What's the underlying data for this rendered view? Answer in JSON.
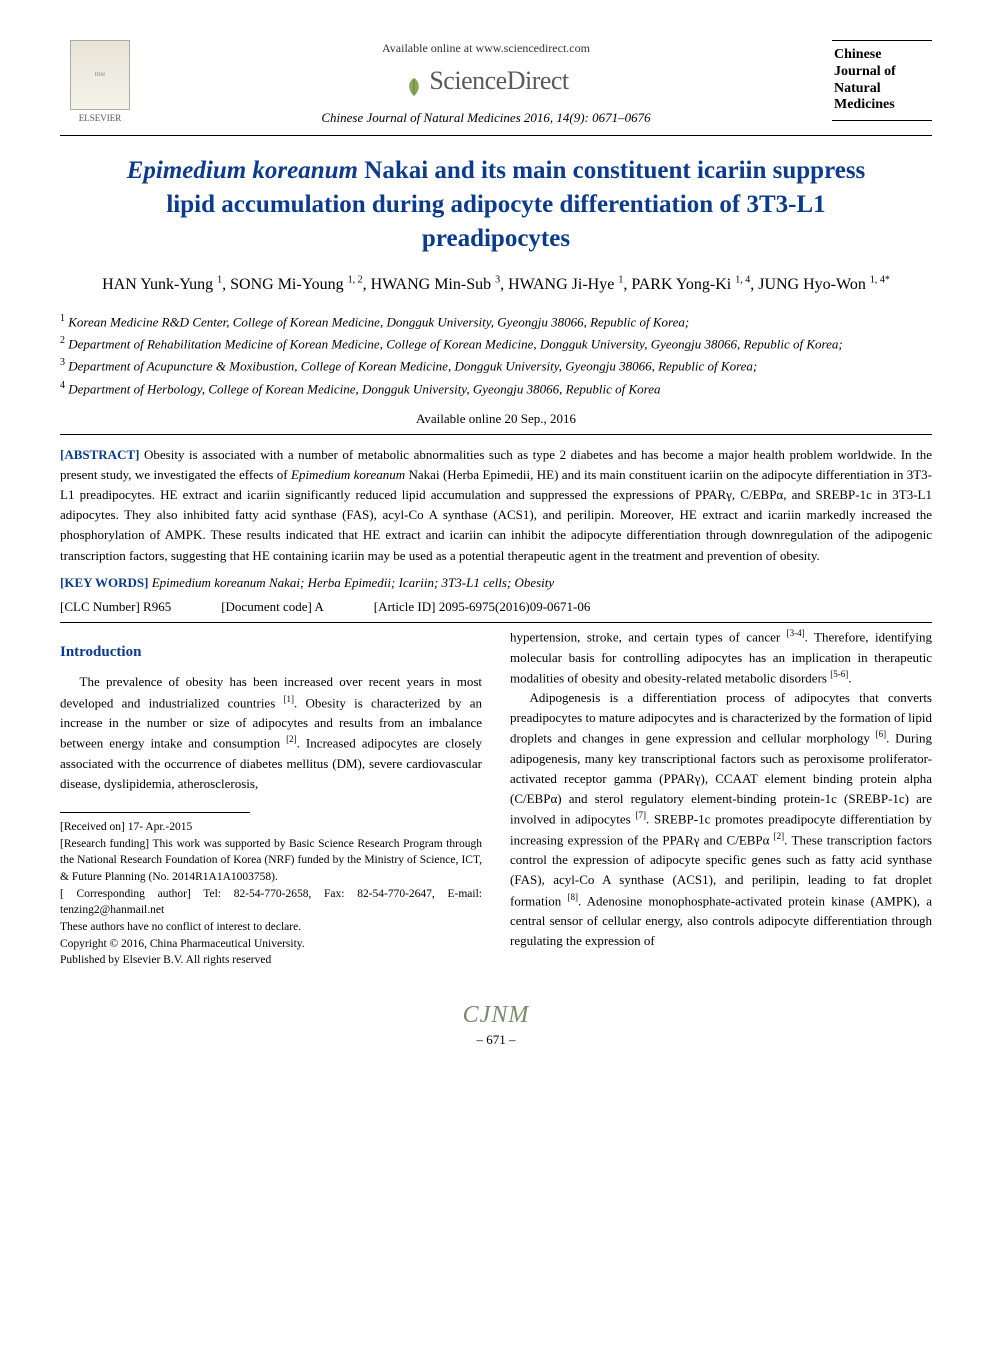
{
  "header": {
    "elsevier_label": "ELSEVIER",
    "available_text": "Available online at www.sciencedirect.com",
    "sd_brand": "ScienceDirect",
    "citation": "Chinese Journal of Natural Medicines 2016, 14(9): 0671–0676",
    "journal_cover_lines": [
      "Chinese",
      "Journal of",
      "Natural",
      "Medicines"
    ]
  },
  "title": {
    "species": "Epimedium koreanum",
    "rest": " Nakai and its main constituent icariin suppress lipid accumulation during adipocyte differentiation of 3T3-L1 preadipocytes",
    "color": "#0a3b8c",
    "fontsize": 25
  },
  "authors_html": "HAN Yunk-Yung <sup>1</sup>, SONG Mi-Young <sup>1, 2</sup>, HWANG Min-Sub <sup>3</sup>, HWANG Ji-Hye <sup>1</sup>, PARK Yong-Ki <sup>1, 4</sup>, JUNG Hyo-Won <sup>1, 4*</sup>",
  "affiliations": [
    "<sup>1</sup> Korean Medicine R&D Center, College of Korean Medicine, Dongguk University, Gyeongju 38066, Republic of Korea;",
    "<sup>2</sup> Department of Rehabilitation Medicine of Korean Medicine, College of Korean Medicine, Dongguk University, Gyeongju 38066, Republic of Korea;",
    "<sup>3</sup> Department of Acupuncture & Moxibustion, College of Korean Medicine, Dongguk University, Gyeongju 38066, Republic of Korea;",
    "<sup>4</sup> Department of Herbology, College of Korean Medicine, Dongguk University, Gyeongju 38066, Republic of Korea"
  ],
  "online_date": "Available online 20 Sep., 2016",
  "abstract": {
    "label": "[ABSTRACT]",
    "text": " Obesity is associated with a number of metabolic abnormalities such as type 2 diabetes and has become a major health problem worldwide. In the present study, we investigated the effects of <span class=\"ital\">Epimedium koreanum</span> Nakai (Herba Epimedii, HE) and its main constituent icariin on the adipocyte differentiation in 3T3-L1 preadipocytes. HE extract and icariin significantly reduced lipid accumulation and suppressed the expressions of PPARγ, C/EBPα, and SREBP-1c in 3T3-L1 adipocytes. They also inhibited fatty acid synthase (FAS), acyl-Co A synthase (ACS1), and perilipin. Moreover, HE extract and icariin markedly increased the phosphorylation of AMPK. These results indicated that HE extract and icariin can inhibit the adipocyte differentiation through downregulation of the adipogenic transcription factors, suggesting that HE containing icariin may be used as a potential therapeutic agent in the treatment and prevention of obesity."
  },
  "keywords": {
    "label": "[KEY WORDS]",
    "text": " Epimedium koreanum Nakai; Herba Epimedii; Icariin; 3T3-L1 cells; Obesity"
  },
  "clc": {
    "label": "[CLC Number]",
    "value": " R965",
    "doc_label": "[Document code]",
    "doc_value": " A",
    "article_label": "[Article ID]",
    "article_value": " 2095-6975(2016)09-0671-06"
  },
  "intro_heading": "Introduction",
  "col_left_paras": [
    "The prevalence of obesity has been increased over recent years in most developed and industrialized countries <sup>[1]</sup>. Obesity is characterized by an increase in the number or size of adipocytes and results from an imbalance between energy intake and consumption <sup>[2]</sup>. Increased adipocytes are closely associated with the occurrence of diabetes mellitus (DM), severe cardiovascular disease, dyslipidemia, atherosclerosis,"
  ],
  "col_right_paras": [
    "hypertension, stroke, and certain types of cancer <sup>[3-4]</sup>. Therefore, identifying molecular basis for controlling adipocytes has an implication in therapeutic modalities of obesity and obesity-related metabolic disorders <sup>[5-6]</sup>.",
    "Adipogenesis is a differentiation process of adipocytes that converts preadipocytes to mature adipocytes and is characterized by the formation of lipid droplets and changes in gene expression and cellular morphology <sup>[6]</sup>. During adipogenesis, many key transcriptional factors such as peroxisome proliferator-activated receptor gamma (PPARγ), CCAAT element binding protein alpha (C/EBPα) and sterol regulatory element-binding protein-1c (SREBP-1c) are involved in adipocytes <sup>[7]</sup>. SREBP-1c promotes preadipocyte differentiation by increasing expression of the PPARγ and C/EBPα <sup>[2]</sup>. These transcription factors control the expression of adipocyte specific genes such as fatty acid synthase (FAS), acyl-Co A synthase (ACS1), and perilipin, leading to fat droplet formation <sup>[8]</sup>. Adenosine monophosphate-activated protein kinase (AMPK), a central sensor of cellular energy, also controls adipocyte differentiation through regulating the expression of"
  ],
  "footnotes": [
    "[Received on] 17- Apr.-2015",
    "[Research funding] This work was supported by Basic Science Research Program through the National Research Foundation of Korea (NRF) funded by the Ministry of Science, ICT, & Future Planning (No. 2014R1A1A1003758).",
    "[ Corresponding author] Tel: 82-54-770-2658, Fax: 82-54-770-2647, E-mail: tenzing2@hanmail.net",
    "These authors have no conflict of interest to declare.",
    "Copyright © 2016, China Pharmaceutical University.",
    "Published by Elsevier B.V. All rights reserved"
  ],
  "footer": {
    "logo": "CJNM",
    "page": "– 671 –"
  },
  "colors": {
    "heading_blue": "#0a3b8c",
    "rule": "#000000",
    "cjnm": "#7a8a6a"
  }
}
